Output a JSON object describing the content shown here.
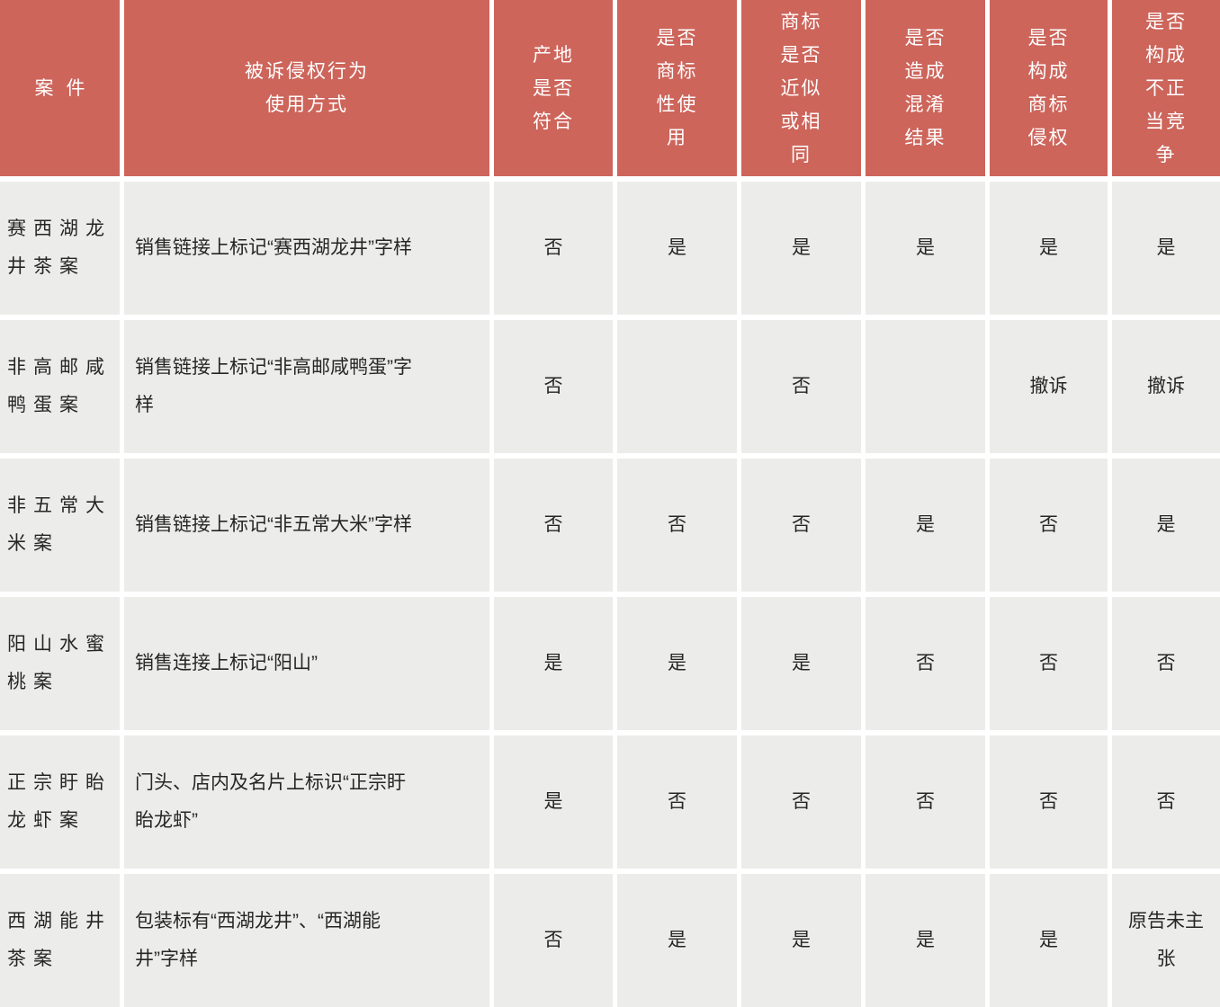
{
  "colors": {
    "header_bg": "#cd655b",
    "header_text": "#ffffff",
    "row_bg": "#ececeb",
    "body_text": "#262626",
    "gap": "#ffffff"
  },
  "table": {
    "headers": [
      "案件",
      "被诉侵权行为\n使用方式",
      "产地\n是否\n符合",
      "是否\n商标\n性使\n用",
      "商标\n是否\n近似\n或相\n同",
      "是否\n造成\n混淆\n结果",
      "是否\n构成\n商标\n侵权",
      "是否\n构成\n不正\n当竞\n争"
    ],
    "rows": [
      {
        "case": "赛西湖龙\n井茶案",
        "usage": "销售链接上标记“赛西湖龙井”字样",
        "values": [
          "否",
          "是",
          "是",
          "是",
          "是",
          "是"
        ]
      },
      {
        "case": "非高邮咸\n鸭蛋案",
        "usage": "销售链接上标记“非高邮咸鸭蛋”字\n样",
        "values": [
          "否",
          "",
          "否",
          "",
          "撤诉",
          "撤诉"
        ]
      },
      {
        "case": "非五常大\n米案",
        "usage": "销售链接上标记“非五常大米”字样",
        "values": [
          "否",
          "否",
          "否",
          "是",
          "否",
          "是"
        ]
      },
      {
        "case": "阳山水蜜\n桃案",
        "usage": "销售连接上标记“阳山”",
        "values": [
          "是",
          "是",
          "是",
          "否",
          "否",
          "否"
        ]
      },
      {
        "case": "正宗盱眙\n龙虾案",
        "usage": "门头、店内及名片上标识“正宗盱\n眙龙虾”",
        "values": [
          "是",
          "否",
          "否",
          "否",
          "否",
          "否"
        ]
      },
      {
        "case": "西湖能井\n茶案",
        "usage": "包装标有“西湖龙井”、“西湖能\n井”字样",
        "values": [
          "否",
          "是",
          "是",
          "是",
          "是",
          "原告未主\n张"
        ]
      }
    ]
  }
}
